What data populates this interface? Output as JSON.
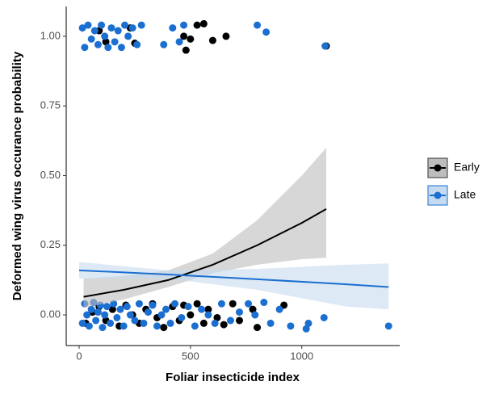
{
  "chart_data": {
    "type": "scatter",
    "x_label": "Foliar insecticide index",
    "y_label": "Deformed wing virus occurance probability",
    "xlim": [
      -58,
      1440
    ],
    "xticks": [
      0,
      500,
      1000
    ],
    "ylim": [
      -0.11,
      1.107
    ],
    "yticks": [
      {
        "value": 0,
        "label": "0.00"
      },
      {
        "value": 0.25,
        "label": "0.25"
      },
      {
        "value": 0.5,
        "label": "0.50"
      },
      {
        "value": 0.75,
        "label": "0.75"
      },
      {
        "value": 1,
        "label": "1.00"
      }
    ],
    "grid": false,
    "legend": "right",
    "series": [
      {
        "name": "Early",
        "color": "#000000",
        "band_color": "#bdbdbd",
        "x": [
          90,
          120,
          230,
          250,
          470,
          480,
          500,
          530,
          560,
          600,
          660,
          1110,
          30,
          60,
          90,
          120,
          150,
          180,
          210,
          240,
          270,
          300,
          330,
          350,
          380,
          420,
          450,
          470,
          500,
          530,
          560,
          580,
          620,
          650,
          690,
          720,
          780,
          800,
          920
        ],
        "y": [
          1.02,
          0.98,
          1.03,
          0.975,
          1.0,
          0.95,
          0.99,
          1.04,
          1.045,
          0.985,
          1.0,
          0.965,
          -0.03,
          0.01,
          0.03,
          -0.02,
          0.02,
          -0.04,
          0.035,
          0.0,
          -0.03,
          0.02,
          0.04,
          -0.01,
          -0.045,
          0.03,
          -0.02,
          0.035,
          0.0,
          0.04,
          -0.03,
          0.02,
          -0.01,
          -0.035,
          0.04,
          -0.02,
          0.02,
          -0.045,
          0.035
        ],
        "fit": {
          "x": [
            20,
            200,
            400,
            600,
            800,
            1000,
            1110
          ],
          "y": [
            0.065,
            0.09,
            0.125,
            0.18,
            0.25,
            0.33,
            0.38
          ],
          "lower": [
            0.025,
            0.055,
            0.1,
            0.15,
            0.18,
            0.2,
            0.205
          ],
          "upper": [
            0.13,
            0.14,
            0.16,
            0.22,
            0.34,
            0.5,
            0.6
          ]
        }
      },
      {
        "name": "Late",
        "color": "#1a6fd1",
        "band_color": "#c6dbef",
        "x": [
          15,
          25,
          40,
          55,
          70,
          85,
          100,
          115,
          130,
          145,
          160,
          175,
          190,
          205,
          220,
          240,
          260,
          280,
          380,
          420,
          450,
          470,
          800,
          840,
          1105,
          15,
          25,
          35,
          45,
          55,
          65,
          75,
          85,
          95,
          105,
          115,
          125,
          140,
          155,
          170,
          185,
          200,
          215,
          230,
          250,
          270,
          290,
          310,
          330,
          350,
          370,
          390,
          410,
          430,
          460,
          490,
          520,
          550,
          580,
          610,
          640,
          680,
          720,
          760,
          790,
          830,
          860,
          900,
          950,
          1020,
          1030,
          1100,
          1390
        ],
        "y": [
          1.03,
          0.96,
          1.04,
          0.99,
          1.02,
          0.97,
          1.04,
          1.0,
          0.96,
          1.03,
          0.98,
          1.02,
          0.96,
          1.04,
          1.0,
          1.03,
          0.97,
          1.04,
          0.97,
          1.03,
          0.98,
          1.04,
          1.04,
          1.015,
          0.965,
          -0.03,
          0.04,
          0.0,
          -0.04,
          0.02,
          0.045,
          -0.02,
          0.01,
          0.035,
          -0.045,
          0.0,
          0.03,
          -0.03,
          0.04,
          -0.01,
          0.02,
          -0.04,
          0.03,
          0.0,
          -0.02,
          0.04,
          -0.03,
          0.01,
          0.035,
          -0.04,
          0.0,
          0.02,
          -0.03,
          0.04,
          -0.01,
          0.03,
          -0.04,
          0.02,
          0.0,
          -0.03,
          0.04,
          -0.02,
          0.01,
          0.04,
          0.0,
          0.045,
          -0.03,
          0.02,
          -0.04,
          -0.05,
          -0.03,
          -0.01,
          -0.04
        ],
        "fit": {
          "x": [
            0,
            400,
            800,
            1200,
            1390
          ],
          "y": [
            0.16,
            0.145,
            0.128,
            0.11,
            0.1
          ],
          "lower": [
            0.13,
            0.13,
            0.09,
            0.03,
            0.02
          ],
          "upper": [
            0.19,
            0.16,
            0.165,
            0.18,
            0.185
          ]
        }
      }
    ]
  }
}
